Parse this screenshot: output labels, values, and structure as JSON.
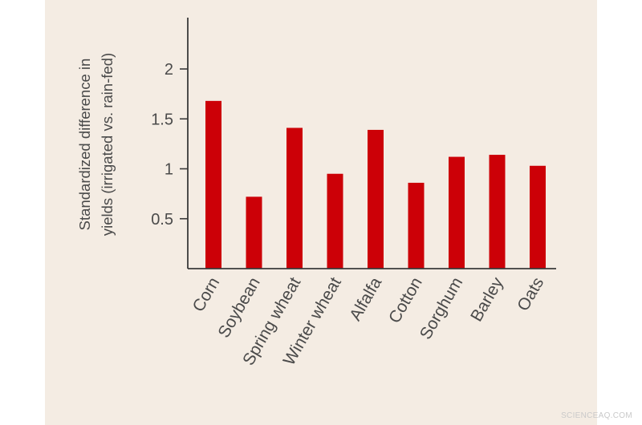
{
  "chart_data": {
    "type": "bar",
    "title": "",
    "xlabel": "",
    "ylabel_lines": [
      "Standardized difference in",
      "yields (irrigated vs. rain-fed)"
    ],
    "categories": [
      "Corn",
      "Soybean",
      "Spring wheat",
      "Winter wheat",
      "Alfalfa",
      "Cotton",
      "Sorghum",
      "Barley",
      "Oats"
    ],
    "values": [
      1.68,
      0.72,
      1.41,
      0.95,
      1.39,
      0.86,
      1.12,
      1.14,
      1.03
    ],
    "yticks": [
      "0.5",
      "1",
      "1.5",
      "2"
    ],
    "ylim": [
      0,
      2.5
    ],
    "grid": false,
    "bar_color": "#cc0007",
    "axis_color": "#3a3a3a"
  },
  "watermark": "SCIENCEAQ.COM"
}
